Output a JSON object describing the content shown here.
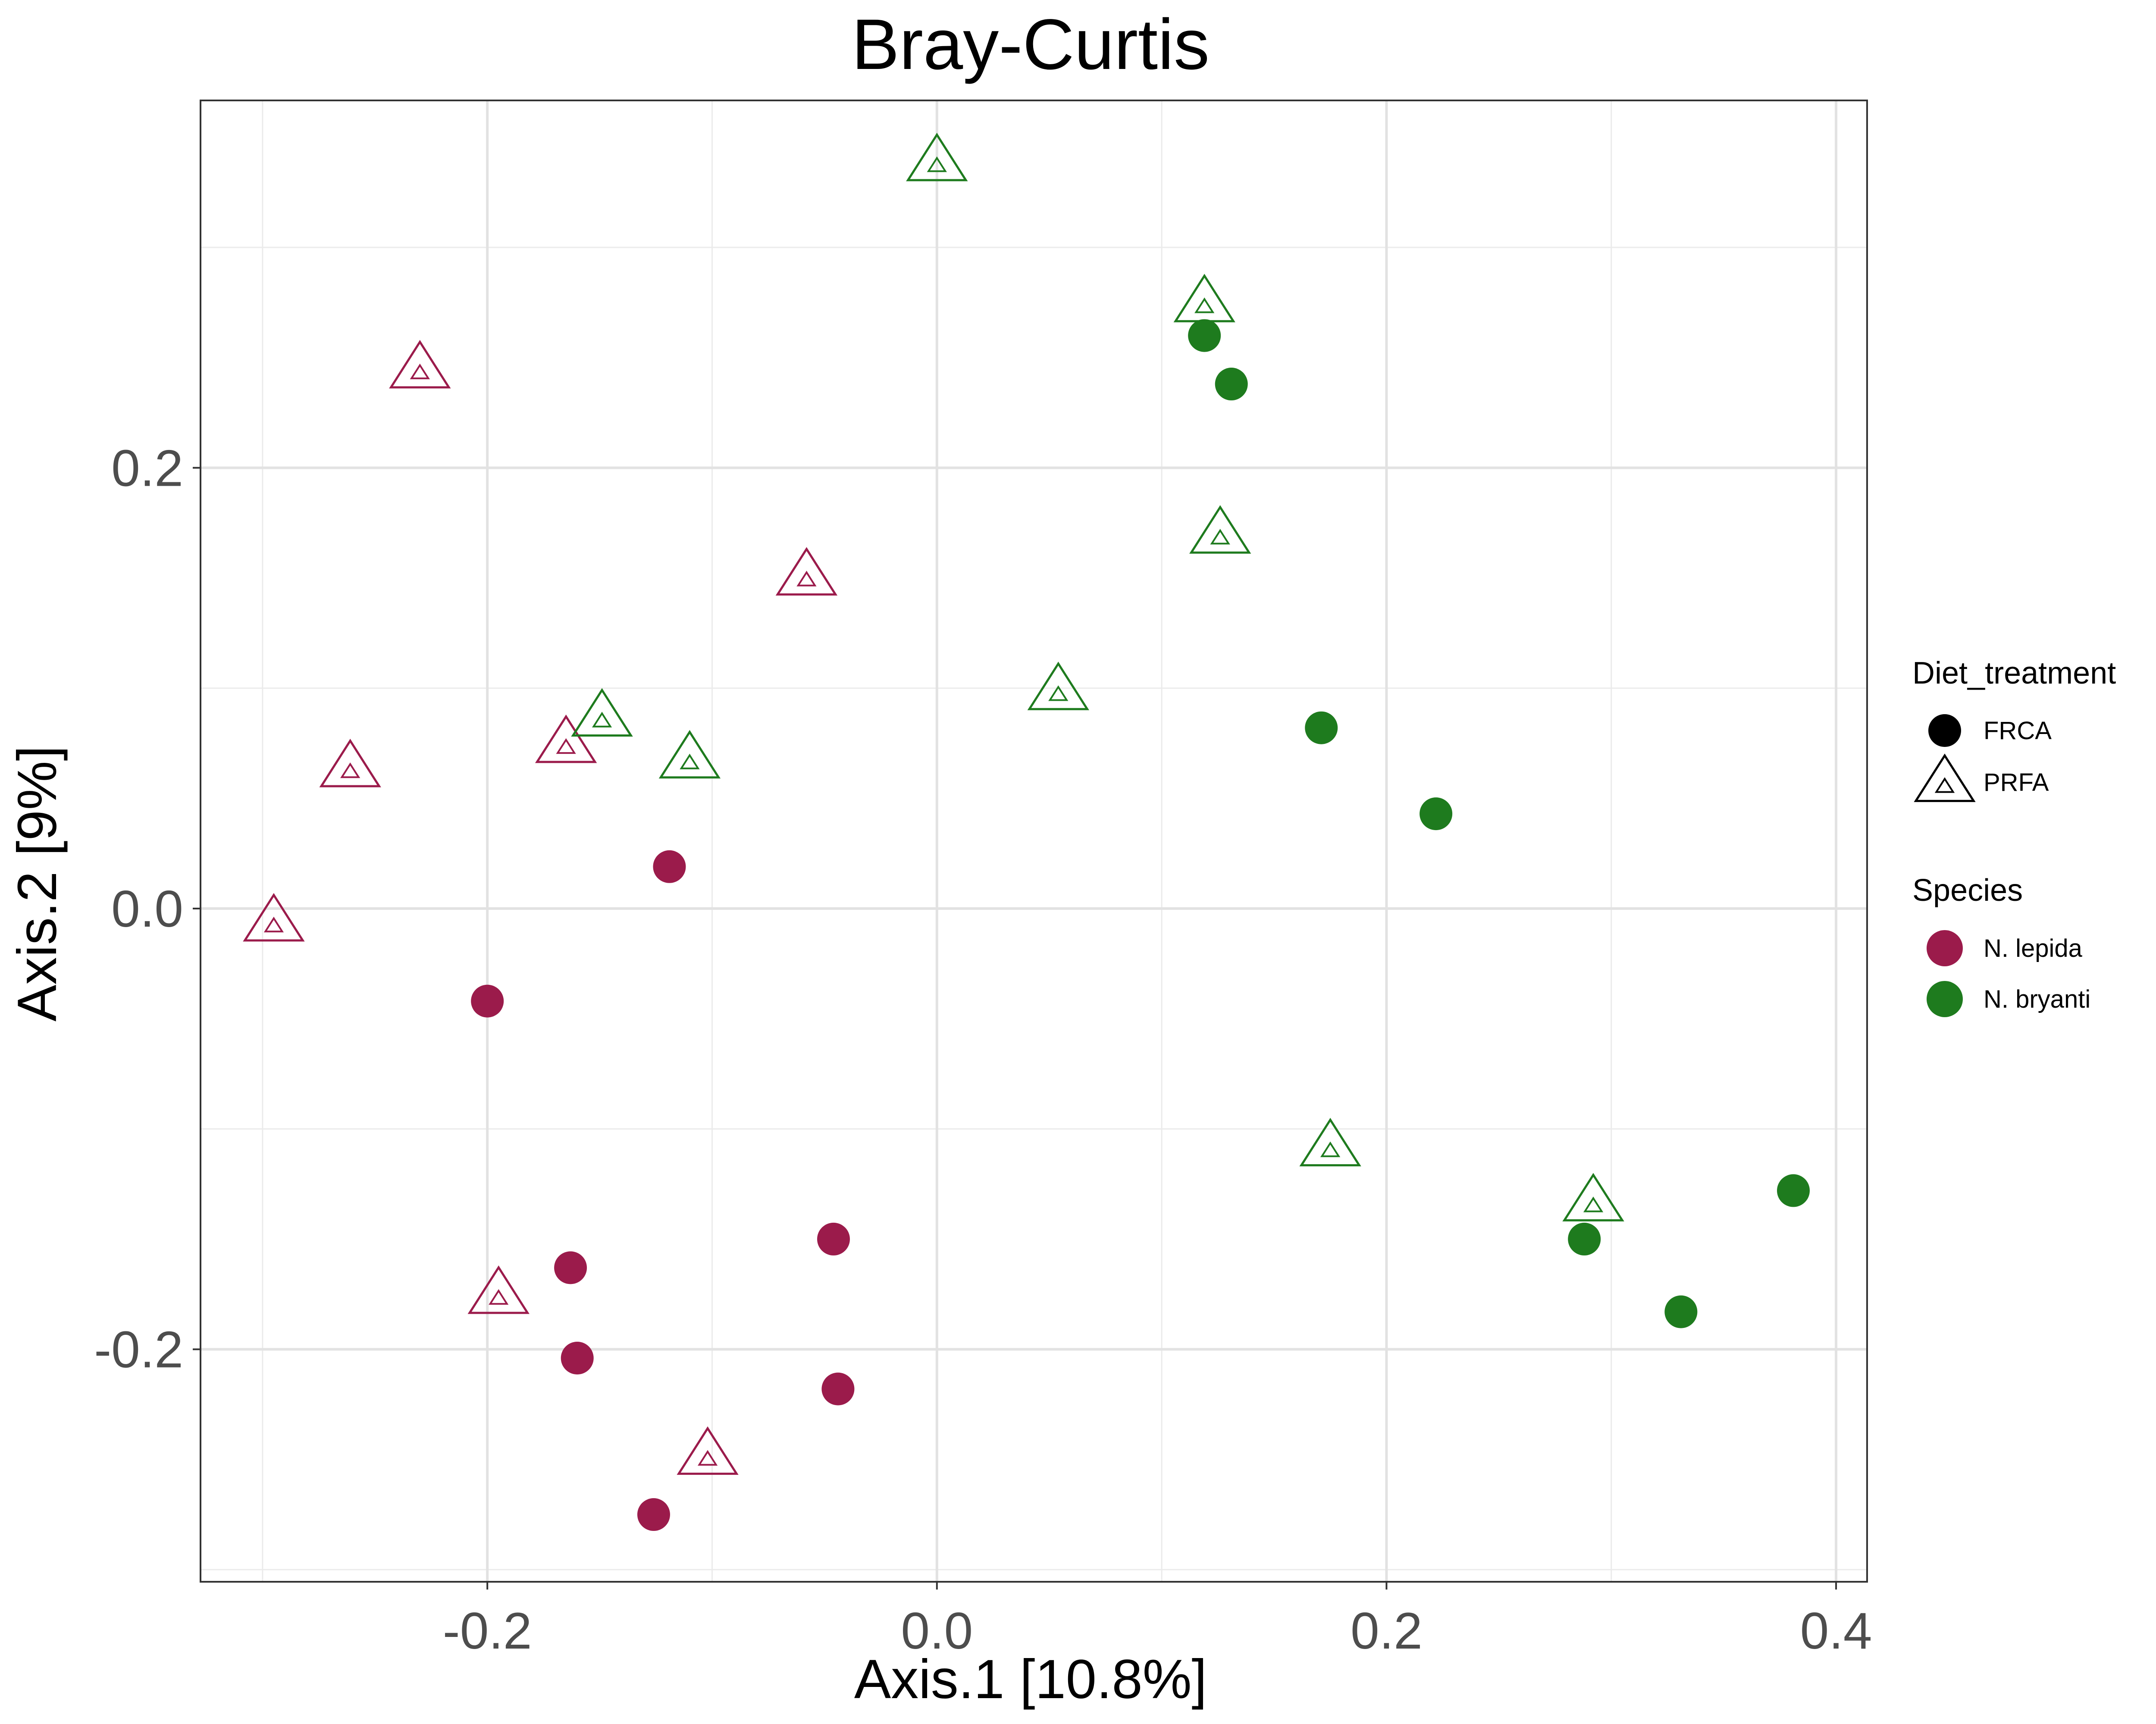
{
  "chart_data": {
    "type": "scatter",
    "title": "Bray-Curtis",
    "xlabel": "Axis.1   [10.8%]",
    "ylabel": "Axis.2   [9%]",
    "xlim": [
      -0.3276,
      0.4138
    ],
    "ylim": [
      -0.3055,
      0.3667
    ],
    "x_ticks": [
      -0.2,
      0.0,
      0.2,
      0.4
    ],
    "y_ticks": [
      -0.2,
      0.0,
      0.2
    ],
    "x_tick_labels": [
      "-0.2",
      "0.0",
      "0.2",
      "0.4"
    ],
    "y_tick_labels": [
      "-0.2",
      "0.0",
      "0.2"
    ],
    "grid": true,
    "legend_position": "right",
    "colors": {
      "N. lepida": "#9b1b4b",
      "N. bryanti": "#1e7b1e"
    },
    "legend": {
      "shape": {
        "title": "Diet_treatment",
        "items": [
          {
            "label": "FRCA",
            "shape": "circle"
          },
          {
            "label": "PRFA",
            "shape": "triangle"
          }
        ]
      },
      "color": {
        "title": "Species",
        "items": [
          {
            "label": "N. lepida",
            "color": "#9b1b4b"
          },
          {
            "label": "N. bryanti",
            "color": "#1e7b1e"
          }
        ]
      }
    },
    "series": [
      {
        "species": "N. lepida",
        "diet": "FRCA",
        "shape": "circle",
        "points": [
          [
            -0.119,
            0.019
          ],
          [
            -0.2,
            -0.042
          ],
          [
            -0.163,
            -0.163
          ],
          [
            -0.16,
            -0.204
          ],
          [
            -0.046,
            -0.15
          ],
          [
            -0.044,
            -0.218
          ],
          [
            -0.126,
            -0.275
          ]
        ]
      },
      {
        "species": "N. lepida",
        "diet": "PRFA",
        "shape": "triangle",
        "points": [
          [
            -0.23,
            0.245
          ],
          [
            -0.058,
            0.151
          ],
          [
            -0.261,
            0.064
          ],
          [
            -0.165,
            0.075
          ],
          [
            -0.295,
            -0.006
          ],
          [
            -0.195,
            -0.175
          ],
          [
            -0.102,
            -0.248
          ]
        ]
      },
      {
        "species": "N. bryanti",
        "diet": "FRCA",
        "shape": "circle",
        "points": [
          [
            0.119,
            0.26
          ],
          [
            0.131,
            0.238
          ],
          [
            0.171,
            0.082
          ],
          [
            0.222,
            0.043
          ],
          [
            0.381,
            -0.128
          ],
          [
            0.288,
            -0.15
          ],
          [
            0.331,
            -0.183
          ]
        ]
      },
      {
        "species": "N. bryanti",
        "diet": "PRFA",
        "shape": "triangle",
        "points": [
          [
            0.0,
            0.339
          ],
          [
            0.119,
            0.275
          ],
          [
            0.126,
            0.17
          ],
          [
            0.054,
            0.099
          ],
          [
            -0.149,
            0.087
          ],
          [
            -0.11,
            0.068
          ],
          [
            0.175,
            -0.108
          ],
          [
            0.292,
            -0.133
          ]
        ]
      }
    ]
  }
}
